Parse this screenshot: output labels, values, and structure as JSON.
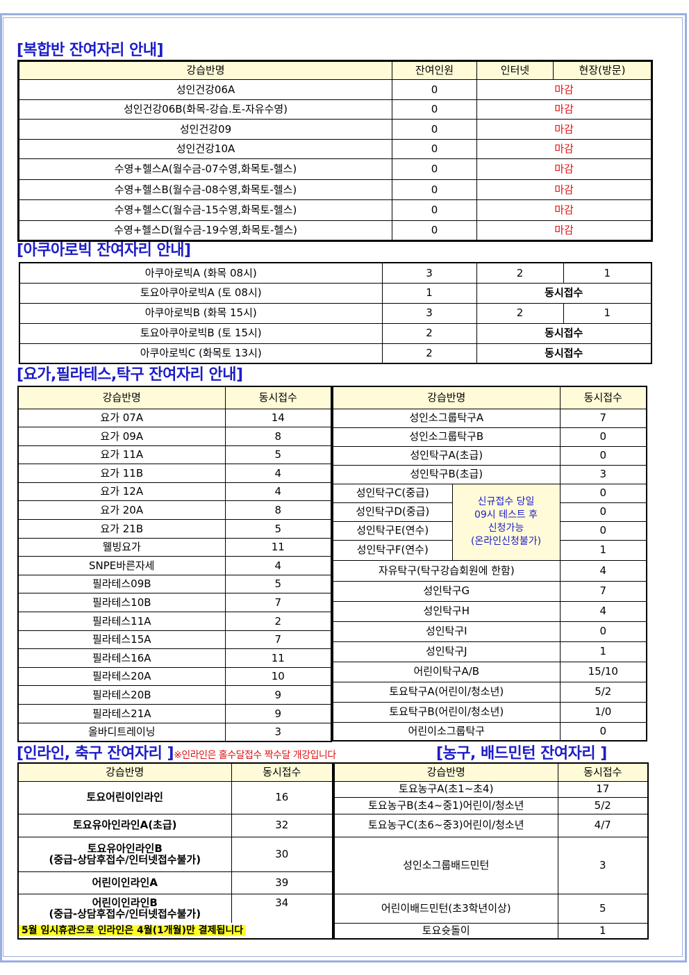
{
  "complex": {
    "title": "[복합반 잔여자리 안내]",
    "headers": [
      "강습반명",
      "잔여인원",
      "인터넷",
      "현장(방문)"
    ],
    "rows": [
      {
        "name": "성인건강06A",
        "remaining": "0",
        "status": "마감"
      },
      {
        "name": "성인건강06B(화목-강습.토-자유수영)",
        "remaining": "0",
        "status": "마감"
      },
      {
        "name": "성인건강09",
        "remaining": "0",
        "status": "마감"
      },
      {
        "name": "성인건강10A",
        "remaining": "0",
        "status": "마감"
      },
      {
        "name": "수영+헬스A(월수금-07수영,화목토-헬스)",
        "remaining": "0",
        "status": "마감"
      },
      {
        "name": "수영+헬스B(월수금-08수영,화목토-헬스)",
        "remaining": "0",
        "status": "마감"
      },
      {
        "name": "수영+헬스C(월수금-15수영,화목토-헬스)",
        "remaining": "0",
        "status": "마감"
      },
      {
        "name": "수영+헬스D(월수금-19수영,화목토-헬스)",
        "remaining": "0",
        "status": "마감"
      }
    ],
    "status_color": "#e01010"
  },
  "aqua": {
    "title": "[아쿠아로빅 잔여자리 안내]",
    "rows": [
      {
        "name": "아쿠아로빅A (화목 08시)",
        "c1": "3",
        "c2": "2",
        "c3": "1"
      },
      {
        "name": "토요아쿠아로빅A (토 08시)",
        "c1": "1",
        "merged": "동시접수"
      },
      {
        "name": "아쿠아로빅B (화목 15시)",
        "c1": "3",
        "c2": "2",
        "c3": "1"
      },
      {
        "name": "토요아쿠아로빅B (토 15시)",
        "c1": "2",
        "merged": "동시접수"
      },
      {
        "name": "아쿠아로빅C (화목토 13시)",
        "c1": "2",
        "merged": "동시접수"
      }
    ]
  },
  "yoga": {
    "title": "[요가,필라테스,탁구 잔여자리 안내]",
    "headers": [
      "강습반명",
      "동시접수"
    ],
    "left": [
      {
        "name": "요가 07A",
        "count": "14"
      },
      {
        "name": "요가 09A",
        "count": "8"
      },
      {
        "name": "요가 11A",
        "count": "5"
      },
      {
        "name": "요가 11B",
        "count": "4"
      },
      {
        "name": "요가 12A",
        "count": "4"
      },
      {
        "name": "요가 20A",
        "count": "8"
      },
      {
        "name": "요가 21B",
        "count": "5"
      },
      {
        "name": "웰빙요가",
        "count": "11"
      },
      {
        "name": "SNPE바른자세",
        "count": "4"
      },
      {
        "name": "필라테스09B",
        "count": "5"
      },
      {
        "name": "필라테스10B",
        "count": "7"
      },
      {
        "name": "필라테스11A",
        "count": "2"
      },
      {
        "name": "필라테스15A",
        "count": "7"
      },
      {
        "name": "필라테스16A",
        "count": "11"
      },
      {
        "name": "필라테스20A",
        "count": "10"
      },
      {
        "name": "필라테스20B",
        "count": "9"
      },
      {
        "name": "필라테스21A",
        "count": "9"
      },
      {
        "name": "올바디트레이닝",
        "count": "3"
      }
    ],
    "right": [
      {
        "name": "성인소그룹탁구A",
        "count": "7"
      },
      {
        "name": "성인소그룹탁구B",
        "count": "0"
      },
      {
        "name": "성인탁구A(초급)",
        "count": "0"
      },
      {
        "name": "성인탁구B(초급)",
        "count": "3"
      },
      {
        "name": "성인탁구C(중급)",
        "count": "0"
      },
      {
        "name": "성인탁구D(중급)",
        "count": "0"
      },
      {
        "name": "성인탁구E(연수)",
        "count": "0"
      },
      {
        "name": "성인탁구F(연수)",
        "count": "1"
      },
      {
        "name": "자유탁구(탁구강습회원에 한함)",
        "count": "4"
      },
      {
        "name": "성인탁구G",
        "count": "7"
      },
      {
        "name": "성인탁구H",
        "count": "4"
      },
      {
        "name": "성인탁구I",
        "count": "0"
      },
      {
        "name": "성인탁구J",
        "count": "1"
      },
      {
        "name": "어린이탁구A/B",
        "count": "15/10"
      },
      {
        "name": "토요탁구A(어린이/청소년)",
        "count": "5/2"
      },
      {
        "name": "토요탁구B(어린이/청소년)",
        "count": "1/0"
      },
      {
        "name": "어린이소그룹탁구",
        "count": "0"
      }
    ],
    "note": [
      "신규접수 당일",
      "09시 테스트 후",
      "신청가능",
      "(온라인신청불가)"
    ]
  },
  "inline": {
    "title": "[인라인, 축구 잔여자리 ]",
    "notice": "※인라인은 홀수달접수 짝수달 개강입니다",
    "headers": [
      "강습반명",
      "동시접수"
    ],
    "rows": [
      {
        "name": "토요어린이인라인",
        "count": "16"
      },
      {
        "name": "토요유아인라인A(초급)",
        "count": "32"
      },
      {
        "name": "토요유아인라인B",
        "name2": "(중급-상담후접수/인터넷접수불가)",
        "count": "30"
      },
      {
        "name": "어린이인라인A",
        "count": "39"
      },
      {
        "name": "어린이인라인B",
        "name2": "(중급-상담후접수/인터넷접수불가)",
        "count": "34"
      }
    ],
    "payment_note": "5월 임시휴관으로 인라인은 4월(1개월)만 결제됩니다"
  },
  "basketball": {
    "title": "[농구, 배드민턴 잔여자리 ]",
    "headers": [
      "강습반명",
      "동시접수"
    ],
    "rows": [
      {
        "name": "토요농구A(초1~초4)",
        "count": "17"
      },
      {
        "name": "토요농구B(초4~중1)어린이/청소년",
        "count": "5/2"
      },
      {
        "name": "토요농구C(초6~중3)어린이/청소년",
        "count": "4/7"
      },
      {
        "name": "성인소그룹배드민턴",
        "count": "3"
      },
      {
        "name": "어린이배드민턴(초3학년이상)",
        "count": "5"
      },
      {
        "name": "토요슛돌이",
        "count": "1"
      }
    ]
  }
}
